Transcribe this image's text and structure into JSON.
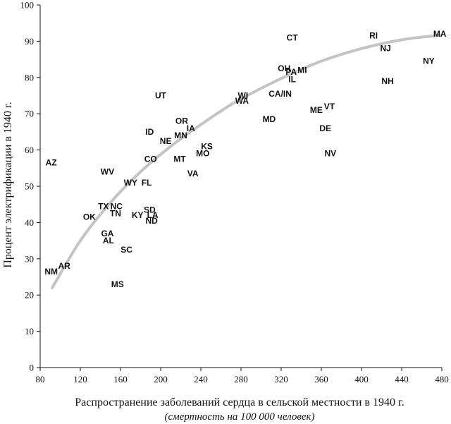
{
  "chart_data": {
    "type": "scatter",
    "title": "",
    "xlabel": "Распространение заболеваний сердца в сельской местности в 1940 г.",
    "xlabel_sub": "(смертность на 100 000 человек)",
    "ylabel": "Процент электрификации в 1940 г.",
    "xlim": [
      80,
      480
    ],
    "ylim": [
      0,
      100
    ],
    "xticks": [
      80,
      120,
      160,
      200,
      240,
      280,
      320,
      360,
      400,
      440,
      480
    ],
    "yticks": [
      0,
      10,
      20,
      30,
      40,
      50,
      60,
      70,
      80,
      90,
      100
    ],
    "grid": false,
    "trend_curve": {
      "color": "#c4c4c4",
      "x": [
        92,
        120,
        150,
        180,
        210,
        240,
        270,
        300,
        330,
        360,
        390,
        420,
        450,
        478
      ],
      "y": [
        22,
        35,
        45.5,
        54,
        61,
        67,
        72.5,
        77,
        81,
        84.5,
        87.2,
        89.3,
        90.8,
        91.6
      ]
    },
    "points": [
      {
        "label": "CT",
        "x": 331,
        "y": 91
      },
      {
        "label": "RI",
        "x": 412,
        "y": 91.5
      },
      {
        "label": "MA",
        "x": 478,
        "y": 92
      },
      {
        "label": "NJ",
        "x": 424,
        "y": 88
      },
      {
        "label": "NY",
        "x": 467,
        "y": 84.5
      },
      {
        "label": "OH",
        "x": 323,
        "y": 82.5
      },
      {
        "label": "PA",
        "x": 330,
        "y": 81.5
      },
      {
        "label": "MI",
        "x": 341,
        "y": 82
      },
      {
        "label": "IL",
        "x": 331,
        "y": 79.5
      },
      {
        "label": "NH",
        "x": 426,
        "y": 79
      },
      {
        "label": "CA/IN",
        "x": 319,
        "y": 75.5
      },
      {
        "label": "WI",
        "x": 282,
        "y": 75
      },
      {
        "label": "WA",
        "x": 281,
        "y": 73.5
      },
      {
        "label": "UT",
        "x": 200,
        "y": 75
      },
      {
        "label": "ME",
        "x": 355,
        "y": 71
      },
      {
        "label": "VT",
        "x": 368,
        "y": 72
      },
      {
        "label": "MD",
        "x": 308,
        "y": 68.5
      },
      {
        "label": "DE",
        "x": 364,
        "y": 66
      },
      {
        "label": "OR",
        "x": 221,
        "y": 68
      },
      {
        "label": "IA",
        "x": 230,
        "y": 66
      },
      {
        "label": "MN",
        "x": 220,
        "y": 64
      },
      {
        "label": "ID",
        "x": 189,
        "y": 65
      },
      {
        "label": "NE",
        "x": 205,
        "y": 62.5
      },
      {
        "label": "KS",
        "x": 246,
        "y": 61
      },
      {
        "label": "MO",
        "x": 242,
        "y": 59
      },
      {
        "label": "NV",
        "x": 369,
        "y": 59
      },
      {
        "label": "CO",
        "x": 190,
        "y": 57.5
      },
      {
        "label": "MT",
        "x": 219,
        "y": 57.5
      },
      {
        "label": "AZ",
        "x": 91,
        "y": 56.5
      },
      {
        "label": "WV",
        "x": 147,
        "y": 54
      },
      {
        "label": "VA",
        "x": 232,
        "y": 53.5
      },
      {
        "label": "WY",
        "x": 170,
        "y": 51
      },
      {
        "label": "FL",
        "x": 186,
        "y": 51
      },
      {
        "label": "TX",
        "x": 143,
        "y": 44.5
      },
      {
        "label": "NC",
        "x": 156,
        "y": 44.5
      },
      {
        "label": "SD",
        "x": 189,
        "y": 43.5
      },
      {
        "label": "TN",
        "x": 155,
        "y": 42.5
      },
      {
        "label": "KY",
        "x": 177,
        "y": 42
      },
      {
        "label": "LA",
        "x": 192,
        "y": 42
      },
      {
        "label": "ND",
        "x": 191,
        "y": 40.5
      },
      {
        "label": "OK",
        "x": 129,
        "y": 41.5
      },
      {
        "label": "GA",
        "x": 147,
        "y": 37
      },
      {
        "label": "AL",
        "x": 148,
        "y": 35
      },
      {
        "label": "SC",
        "x": 166,
        "y": 32.5
      },
      {
        "label": "AR",
        "x": 104,
        "y": 28
      },
      {
        "label": "NM",
        "x": 91,
        "y": 26.5
      },
      {
        "label": "MS",
        "x": 157,
        "y": 23
      }
    ]
  }
}
